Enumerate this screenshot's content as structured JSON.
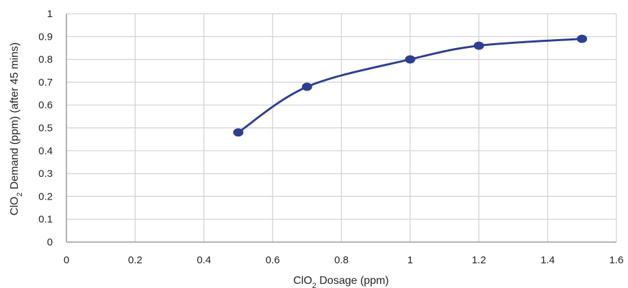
{
  "chart_data": {
    "type": "line",
    "title": "",
    "xlabel_main": "ClO",
    "xlabel_sub": "2",
    "xlabel_rest": " Dosage (ppm)",
    "ylabel_main": "ClO",
    "ylabel_sub": "2",
    "ylabel_rest": " Demand (ppm) (after 45 mins)",
    "xlim": [
      0,
      1.6
    ],
    "ylim": [
      0,
      1
    ],
    "x_ticks": [
      0,
      0.2,
      0.4,
      0.6,
      0.8,
      1,
      1.2,
      1.4,
      1.6
    ],
    "x_tick_labels": [
      "0",
      "0.2",
      "0.4",
      "0.6",
      "0.8",
      "1",
      "1.2",
      "1.4",
      "1.6"
    ],
    "y_ticks": [
      0,
      0.1,
      0.2,
      0.3,
      0.4,
      0.5,
      0.6,
      0.7,
      0.8,
      0.9,
      1
    ],
    "y_tick_labels": [
      "0",
      "0.1",
      "0.2",
      "0.3",
      "0.4",
      "0.5",
      "0.6",
      "0.7",
      "0.8",
      "0.9",
      "1"
    ],
    "grid": true,
    "legend": "none",
    "smooth": true,
    "series": [
      {
        "x": [
          0.5,
          0.7,
          1.0,
          1.2,
          1.5
        ],
        "y": [
          0.48,
          0.68,
          0.8,
          0.86,
          0.89
        ],
        "color": "#2e3f8f"
      }
    ],
    "grid_color": "#d0d0d0",
    "axis_color": "#999999"
  }
}
